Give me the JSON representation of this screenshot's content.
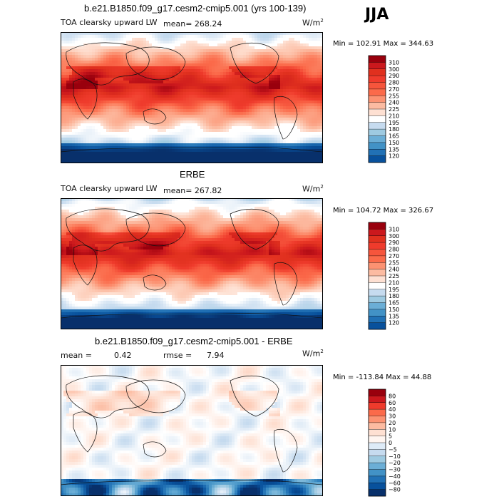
{
  "season": "JJA",
  "colors": {
    "scale_warm": [
      "#fee0d2",
      "#fcbba1",
      "#fc9272",
      "#fb6a4a",
      "#ef3b2c",
      "#e34a33",
      "#cb181d",
      "#b2182b",
      "#99000d",
      "#67000d"
    ],
    "scale_cool": [
      "#deebf7",
      "#c6dbef",
      "#9ecae1",
      "#6baed6",
      "#4292c6",
      "#2171b5",
      "#08519c",
      "#08306b"
    ],
    "neutral": "#ffffff",
    "continent_outline": "#111111"
  },
  "panels": [
    {
      "title": "b.e21.B1850.f09_g17.cesm2-cmip5.001 (yrs 100-139)",
      "variable": "TOA clearsky upward LW",
      "stat_label": "mean=",
      "stat_value": "268.24",
      "units": "W/m",
      "units_sup": "2",
      "minmax": "Min = 102.91 Max = 344.63"
    },
    {
      "title": "ERBE",
      "variable": "TOA clearsky upward LW",
      "stat_label": "mean=",
      "stat_value": "267.82",
      "units": "W/m",
      "units_sup": "2",
      "minmax": "Min = 104.72 Max = 326.67"
    },
    {
      "title": "b.e21.B1850.f09_g17.cesm2-cmip5.001 - ERBE",
      "mean_label": "mean =",
      "mean_value": "0.42",
      "rmse_label": "rmse =",
      "rmse_value": "7.94",
      "units": "W/m",
      "units_sup": "2",
      "minmax": "Min = -113.84 Max = 44.88"
    }
  ],
  "chart_data": [
    {
      "type": "heatmap",
      "title": "b.e21.B1850.f09_g17.cesm2-cmip5.001 (yrs 100-139)",
      "variable": "TOA clearsky upward LW",
      "mean": 268.24,
      "min": 102.91,
      "max": 344.63,
      "units": "W/m2",
      "colorbar_levels": [
        310,
        300,
        290,
        280,
        270,
        255,
        240,
        225,
        210,
        195,
        180,
        165,
        150,
        135,
        120
      ],
      "colorbar_colors": [
        "#99000d",
        "#cb181d",
        "#e0301e",
        "#ef3b2c",
        "#f6553c",
        "#fb6a4a",
        "#fc9272",
        "#fcbba1",
        "#fee0d2",
        "#ffffff",
        "#c6dbef",
        "#9ecae1",
        "#6baed6",
        "#4292c6",
        "#2171b5",
        "#08519c"
      ]
    },
    {
      "type": "heatmap",
      "title": "ERBE",
      "variable": "TOA clearsky upward LW",
      "mean": 267.82,
      "min": 104.72,
      "max": 326.67,
      "units": "W/m2",
      "colorbar_levels": [
        310,
        300,
        290,
        280,
        270,
        255,
        240,
        225,
        210,
        195,
        180,
        165,
        150,
        135,
        120
      ],
      "colorbar_colors": [
        "#99000d",
        "#cb181d",
        "#e0301e",
        "#ef3b2c",
        "#f6553c",
        "#fb6a4a",
        "#fc9272",
        "#fcbba1",
        "#fee0d2",
        "#ffffff",
        "#c6dbef",
        "#9ecae1",
        "#6baed6",
        "#4292c6",
        "#2171b5",
        "#08519c"
      ]
    },
    {
      "type": "heatmap",
      "title": "b.e21.B1850.f09_g17.cesm2-cmip5.001 - ERBE",
      "mean": 0.42,
      "rmse": 7.94,
      "min": -113.84,
      "max": 44.88,
      "units": "W/m2",
      "colorbar_levels": [
        80,
        60,
        40,
        30,
        20,
        10,
        5,
        0,
        -5,
        -10,
        -20,
        -30,
        -40,
        -60,
        -80
      ],
      "colorbar_colors": [
        "#99000d",
        "#cb181d",
        "#ef3b2c",
        "#fb6a4a",
        "#fc9272",
        "#fcbba1",
        "#fee0d2",
        "#fff5f0",
        "#deebf7",
        "#c6dbef",
        "#9ecae1",
        "#6baed6",
        "#4292c6",
        "#2171b5",
        "#08519c",
        "#08306b"
      ]
    }
  ]
}
